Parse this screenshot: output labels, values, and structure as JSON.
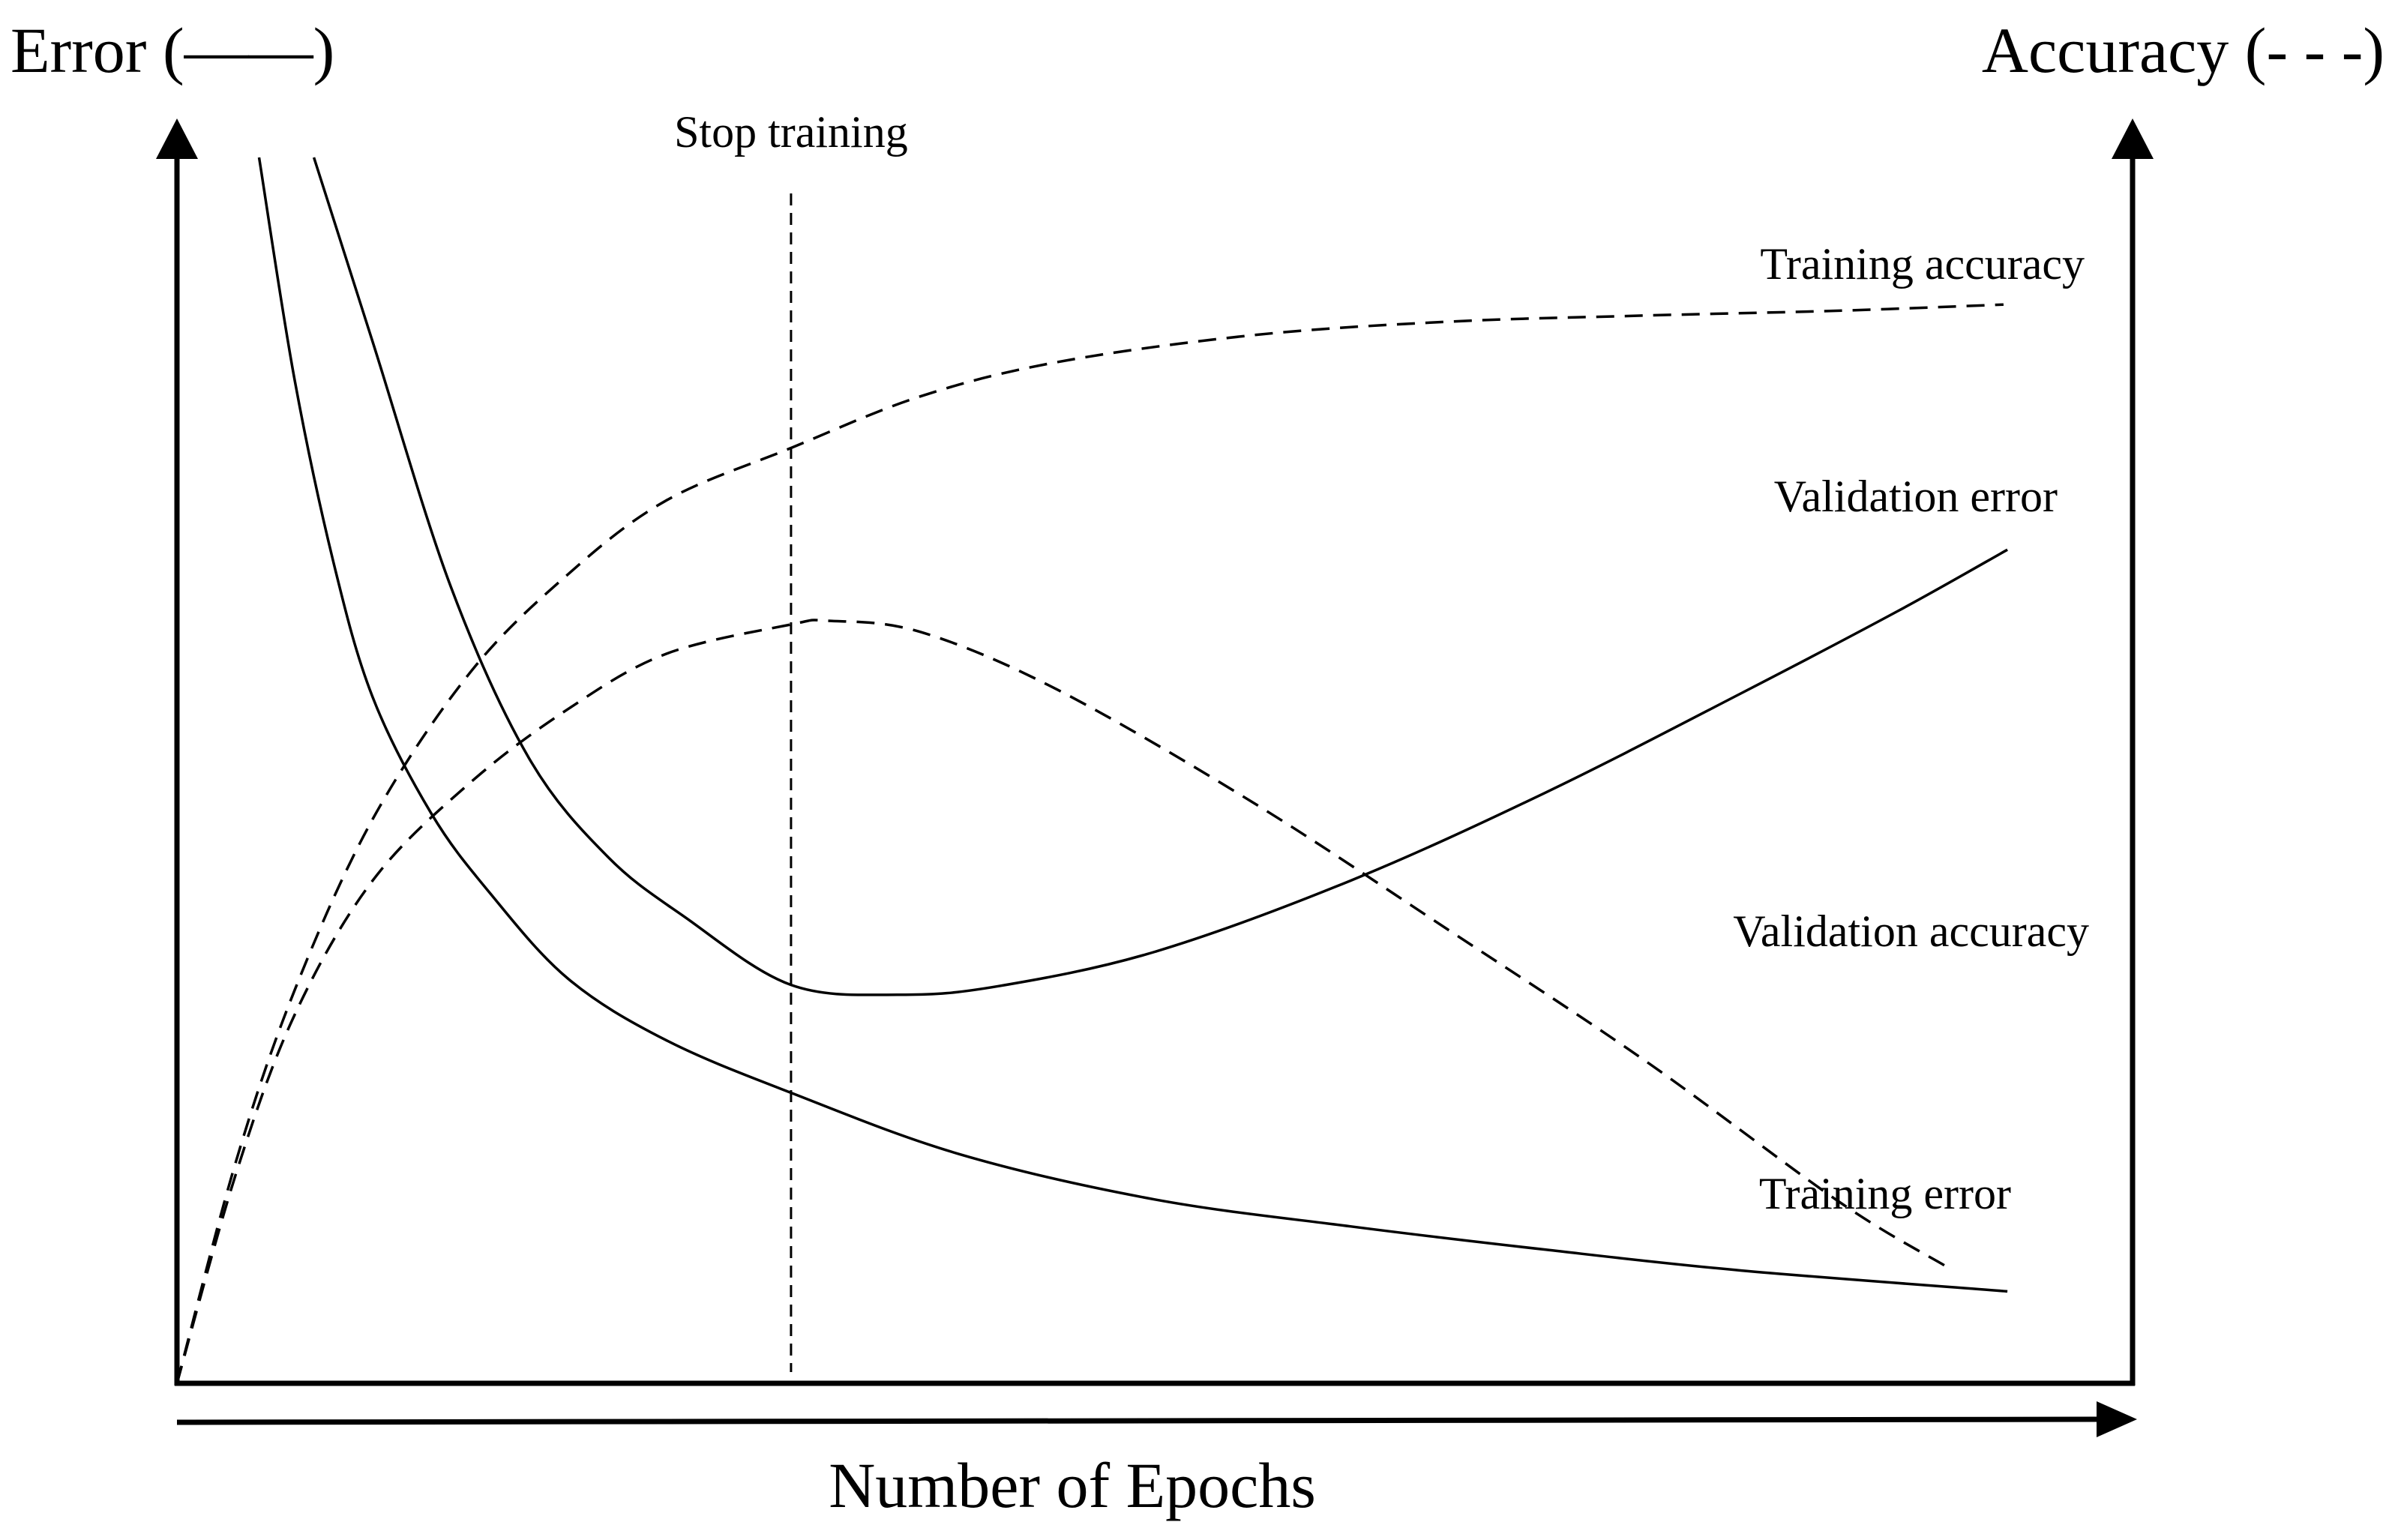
{
  "chart_data": {
    "type": "line",
    "title": "",
    "xlabel": "Number of Epochs",
    "ylabel_left": "Error (——)",
    "ylabel_right": "Accuracy (- - -)",
    "grid": false,
    "x_ticks_shown": false,
    "y_ticks_shown": false,
    "xlim": [
      0,
      100
    ],
    "ylim": [
      0,
      100
    ],
    "stop_marker": {
      "label": "Stop training",
      "x": 31.4
    },
    "series": [
      {
        "name": "Training accuracy",
        "style": "dashed",
        "axis": "right",
        "x": [
          0,
          3,
          6,
          10,
          15,
          20,
          25,
          31.4,
          38,
          45,
          55,
          65,
          75,
          85,
          93.4
        ],
        "y": [
          0,
          18,
          32,
          46,
          58,
          66,
          72,
          76.3,
          80.5,
          83.3,
          85.5,
          86.6,
          87.1,
          87.5,
          88
        ]
      },
      {
        "name": "Validation error",
        "style": "solid",
        "axis": "left",
        "x": [
          7,
          10,
          14,
          18,
          22,
          26,
          31.4,
          37,
          42,
          50,
          60,
          70,
          80,
          88,
          93.6
        ],
        "y": [
          100,
          85,
          65,
          51,
          43,
          38,
          32.5,
          31.7,
          32.4,
          35.2,
          41,
          48.2,
          56.3,
          63,
          68
        ]
      },
      {
        "name": "Validation accuracy",
        "style": "dashed",
        "axis": "right",
        "x": [
          0,
          3,
          6,
          10,
          15,
          20,
          25,
          31.4,
          33.3,
          38,
          45,
          55,
          65,
          75,
          85,
          90.4
        ],
        "y": [
          0,
          17,
          30,
          41,
          49,
          55,
          59.5,
          61.9,
          62.2,
          61.3,
          56.6,
          47.4,
          37,
          26.4,
          14.8,
          9.6
        ]
      },
      {
        "name": "Training error",
        "style": "solid",
        "axis": "left",
        "x": [
          4.2,
          6,
          8,
          10,
          13,
          16,
          20,
          25,
          31.4,
          40,
          50,
          60,
          70,
          80,
          93.6
        ],
        "y": [
          100,
          82,
          67,
          56,
          46.5,
          40,
          33,
          28,
          23.7,
          18.7,
          15,
          12.8,
          10.9,
          9.2,
          7.5
        ]
      }
    ]
  }
}
